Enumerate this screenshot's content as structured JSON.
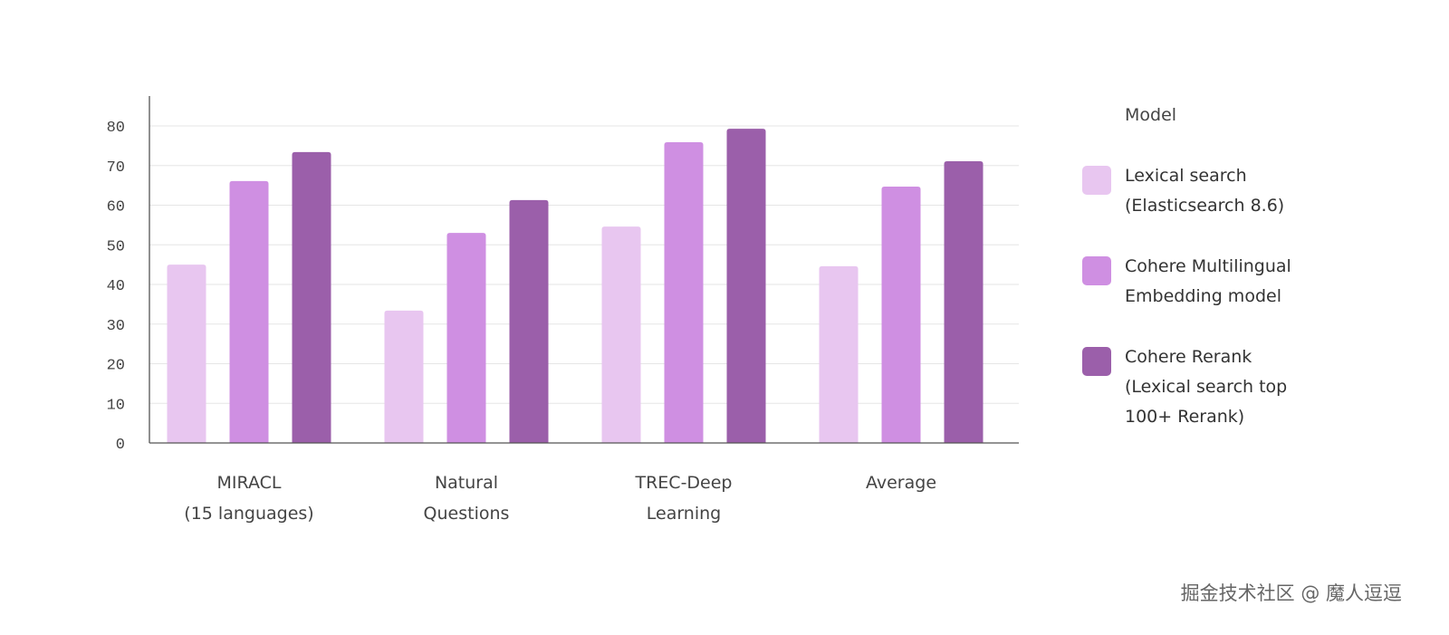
{
  "chart_data": {
    "type": "bar",
    "title": "",
    "xlabel": "",
    "ylabel": "",
    "ylim": [
      0,
      80
    ],
    "yticks": [
      0,
      10,
      20,
      30,
      40,
      50,
      60,
      70,
      80
    ],
    "grid": true,
    "legend_title": "Model",
    "legend_placement": "right",
    "categories": [
      [
        "MIRACL",
        "(15 languages)"
      ],
      [
        "Natural",
        "Questions"
      ],
      [
        "TREC-Deep",
        "Learning"
      ],
      [
        "Average"
      ]
    ],
    "series": [
      {
        "name": [
          "Lexical search",
          "(Elasticsearch 8.6)"
        ],
        "color": "#e8c6f0",
        "values": [
          45.0,
          33.4,
          54.6,
          44.6
        ]
      },
      {
        "name": [
          "Cohere Multilingual",
          "Embedding model"
        ],
        "color": "#cf8fe2",
        "values": [
          66.1,
          53.0,
          75.9,
          64.7
        ]
      },
      {
        "name": [
          "Cohere Rerank",
          "(Lexical search top",
          "100+ Rerank)"
        ],
        "color": "#9b5faa",
        "values": [
          73.4,
          61.3,
          79.3,
          71.1
        ]
      }
    ]
  },
  "watermark": "掘金技术社区 @ 魔人逗逗"
}
